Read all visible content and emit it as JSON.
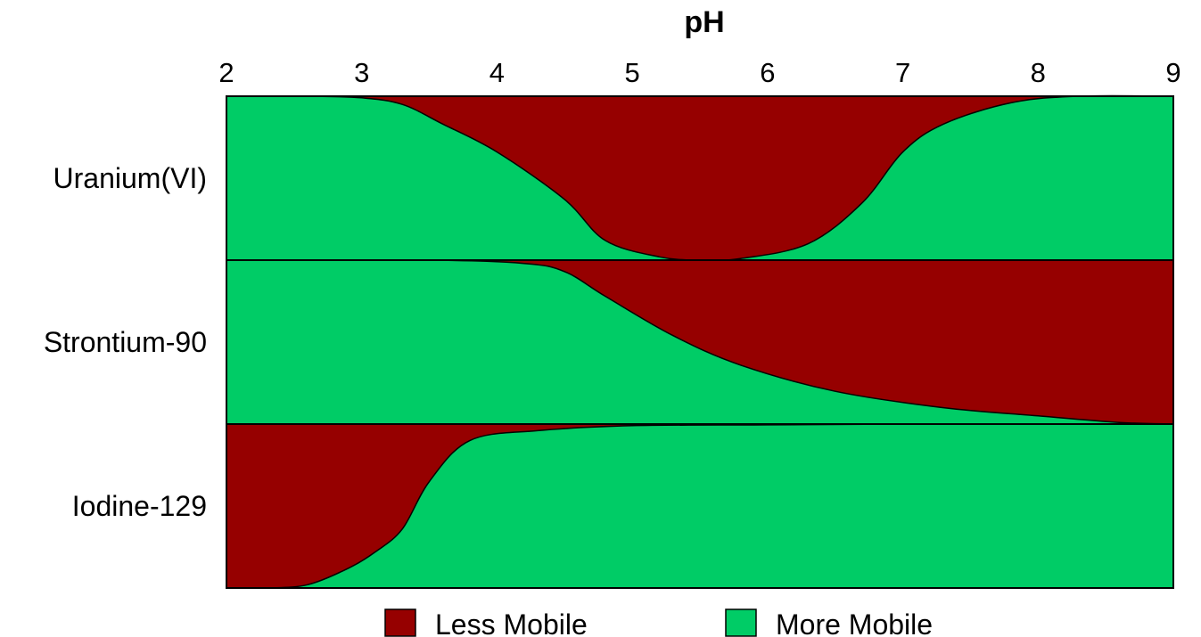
{
  "chart_data": {
    "type": "area",
    "title": "",
    "xlabel": "pH",
    "x_axis_position": "top",
    "xlim": [
      2,
      9
    ],
    "x_ticks": [
      "2",
      "3",
      "4",
      "5",
      "6",
      "7",
      "8",
      "9"
    ],
    "grid": false,
    "colors": {
      "less_mobile": "#960000",
      "more_mobile": "#00CC66",
      "outline": "#000000"
    },
    "legend": {
      "position": "bottom-center",
      "items": [
        {
          "label": "Less Mobile",
          "color_key": "less_mobile"
        },
        {
          "label": "More Mobile",
          "color_key": "more_mobile"
        }
      ]
    },
    "rows": [
      {
        "label": "Uranium(VI)",
        "description": "fraction of band that is Less Mobile (red region spanning from top), by pH",
        "less_mobile_fraction": [
          {
            "ph": 2.0,
            "value": 0.0
          },
          {
            "ph": 2.6,
            "value": 0.0
          },
          {
            "ph": 3.0,
            "value": 0.01
          },
          {
            "ph": 3.3,
            "value": 0.05
          },
          {
            "ph": 3.6,
            "value": 0.17
          },
          {
            "ph": 4.0,
            "value": 0.34
          },
          {
            "ph": 4.5,
            "value": 0.63
          },
          {
            "ph": 4.8,
            "value": 0.88
          },
          {
            "ph": 5.2,
            "value": 0.98
          },
          {
            "ph": 5.5,
            "value": 1.0
          },
          {
            "ph": 5.8,
            "value": 0.99
          },
          {
            "ph": 6.3,
            "value": 0.9
          },
          {
            "ph": 6.7,
            "value": 0.65
          },
          {
            "ph": 7.0,
            "value": 0.34
          },
          {
            "ph": 7.3,
            "value": 0.17
          },
          {
            "ph": 7.8,
            "value": 0.04
          },
          {
            "ph": 8.3,
            "value": 0.0
          },
          {
            "ph": 9.0,
            "value": 0.0
          }
        ]
      },
      {
        "label": "Strontium-90",
        "description": "fraction of band that is Less Mobile (red region spanning from top), by pH",
        "less_mobile_fraction": [
          {
            "ph": 2.0,
            "value": 0.0
          },
          {
            "ph": 3.5,
            "value": 0.0
          },
          {
            "ph": 4.2,
            "value": 0.02
          },
          {
            "ph": 4.5,
            "value": 0.07
          },
          {
            "ph": 4.8,
            "value": 0.22
          },
          {
            "ph": 5.3,
            "value": 0.46
          },
          {
            "ph": 5.8,
            "value": 0.64
          },
          {
            "ph": 6.5,
            "value": 0.8
          },
          {
            "ph": 7.3,
            "value": 0.9
          },
          {
            "ph": 8.0,
            "value": 0.95
          },
          {
            "ph": 8.6,
            "value": 0.99
          },
          {
            "ph": 9.0,
            "value": 1.0
          }
        ]
      },
      {
        "label": "Iodine-129",
        "description": "fraction of band that is Less Mobile (red region spanning from top), by pH",
        "less_mobile_fraction": [
          {
            "ph": 2.0,
            "value": 1.0
          },
          {
            "ph": 2.3,
            "value": 1.0
          },
          {
            "ph": 2.6,
            "value": 0.98
          },
          {
            "ph": 2.9,
            "value": 0.88
          },
          {
            "ph": 3.1,
            "value": 0.78
          },
          {
            "ph": 3.3,
            "value": 0.64
          },
          {
            "ph": 3.5,
            "value": 0.35
          },
          {
            "ph": 3.8,
            "value": 0.1
          },
          {
            "ph": 4.3,
            "value": 0.04
          },
          {
            "ph": 5.0,
            "value": 0.01
          },
          {
            "ph": 6.0,
            "value": 0.005
          },
          {
            "ph": 7.0,
            "value": 0.0
          },
          {
            "ph": 9.0,
            "value": 0.0
          }
        ]
      }
    ]
  }
}
